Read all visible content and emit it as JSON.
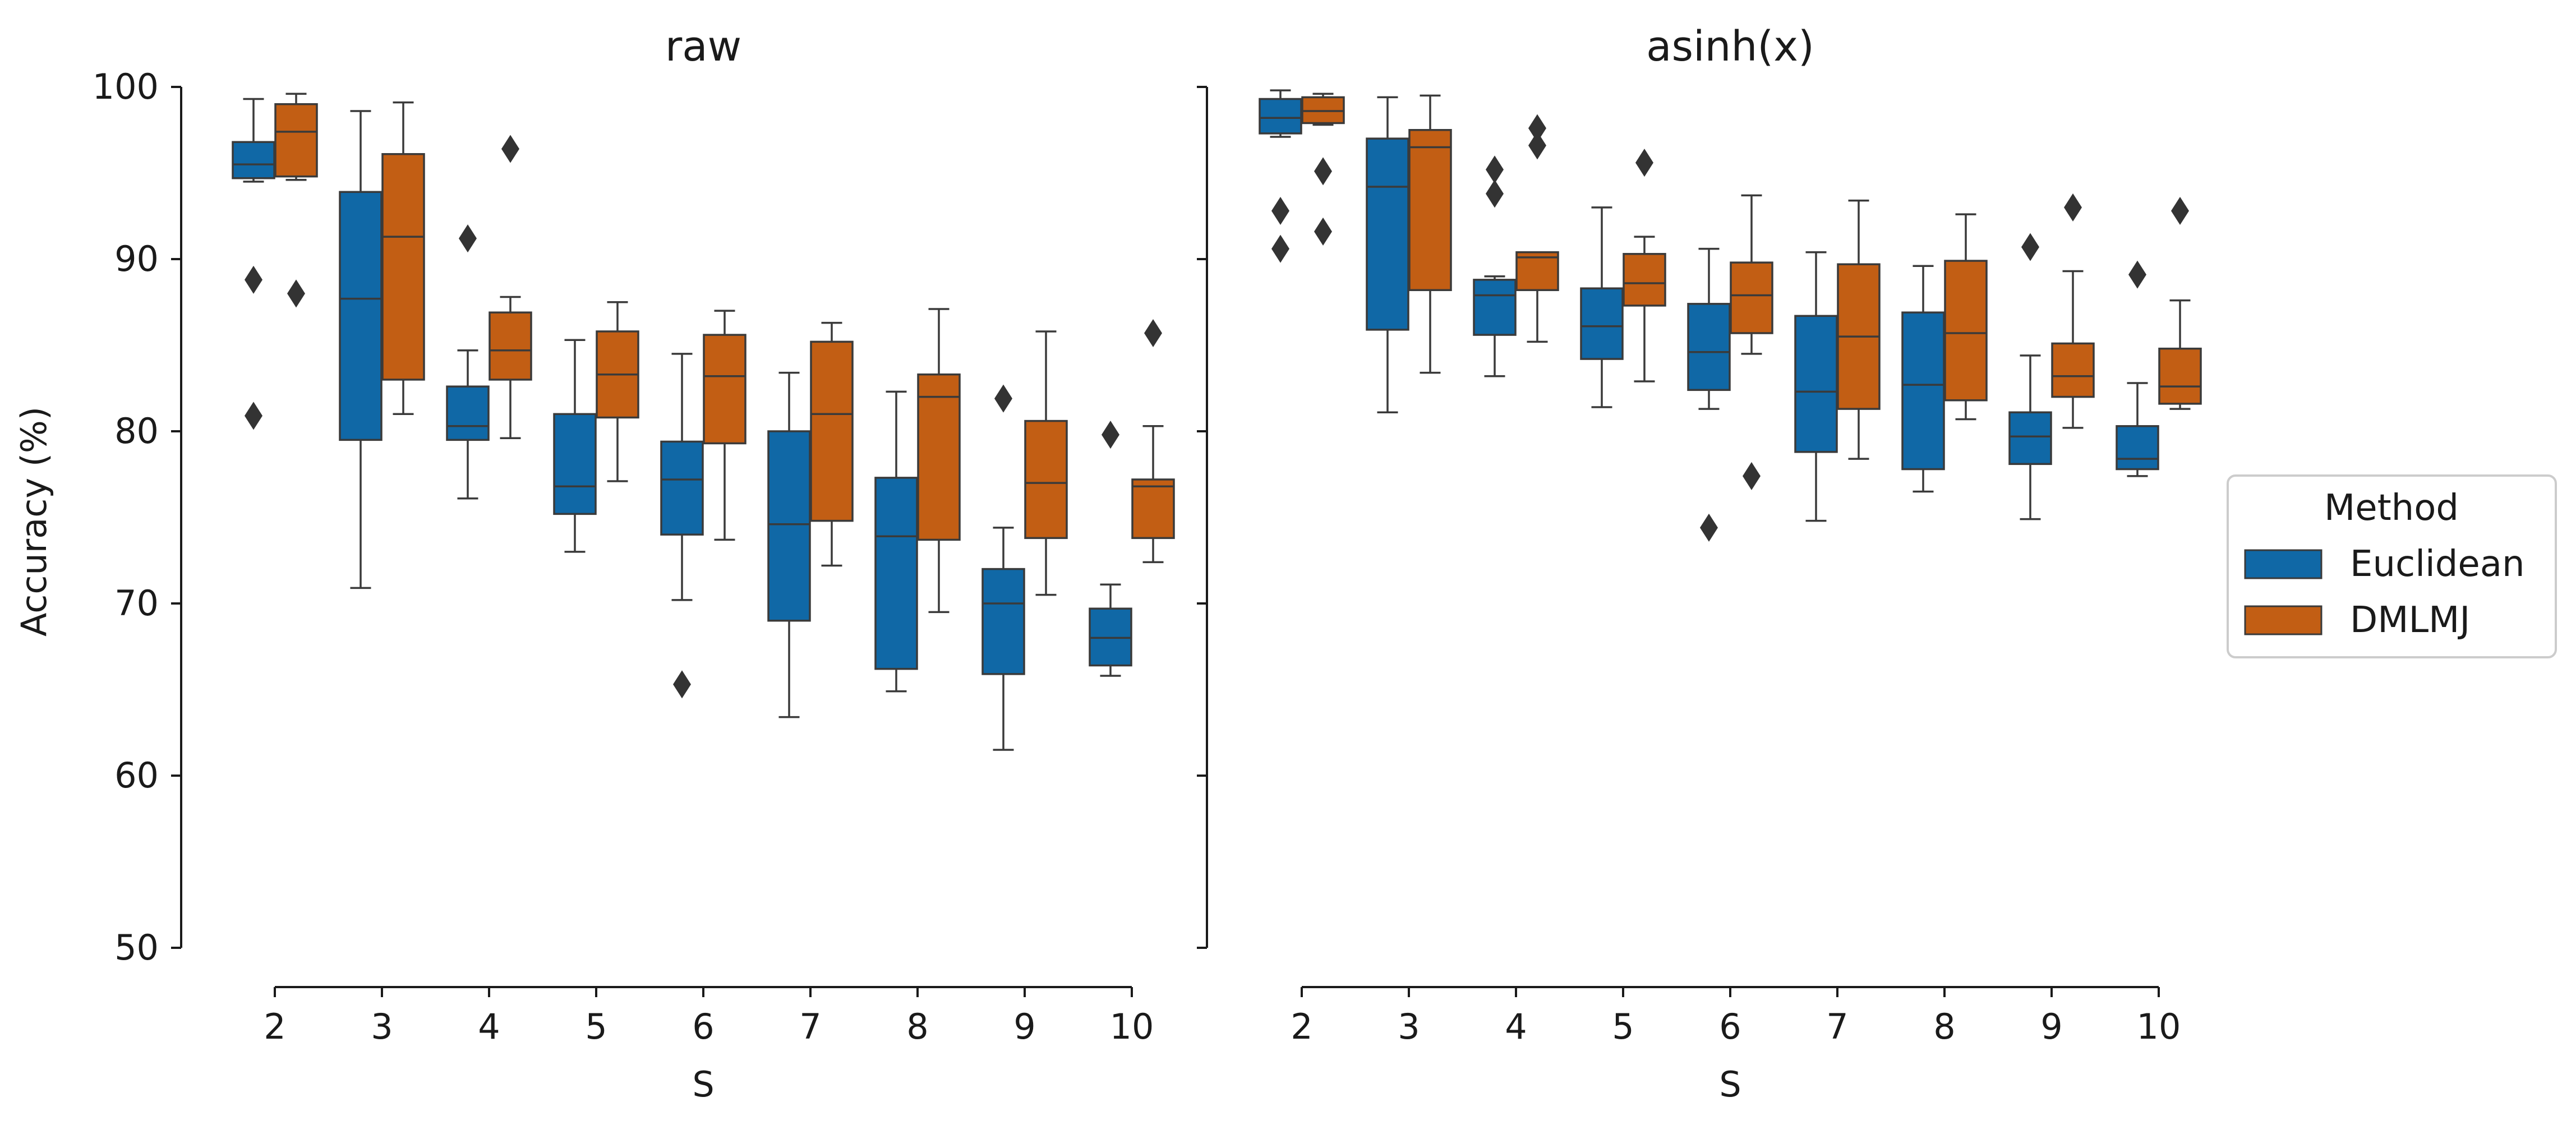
{
  "chart_data": {
    "type": "box",
    "ylabel": "Accuracy (%)",
    "ylim": [
      50,
      100
    ],
    "yticks": [
      50,
      60,
      70,
      80,
      90,
      100
    ],
    "legend": {
      "title": "Method",
      "placement": "right",
      "entries": [
        {
          "name": "Euclidean",
          "color": "#1068a6"
        },
        {
          "name": "DMLMJ",
          "color": "#c25e14"
        }
      ]
    },
    "panels": [
      {
        "title": "raw",
        "xlabel": "S",
        "categories": [
          "2",
          "3",
          "4",
          "5",
          "6",
          "7",
          "8",
          "9",
          "10"
        ],
        "series": [
          {
            "name": "Euclidean",
            "boxes": [
              {
                "whislo": 94.5,
                "q1": 94.7,
                "med": 95.5,
                "q3": 96.8,
                "whishi": 99.3,
                "fliers": [
                  88.8,
                  80.9
                ]
              },
              {
                "whislo": 70.9,
                "q1": 79.5,
                "med": 87.7,
                "q3": 93.9,
                "whishi": 98.6,
                "fliers": []
              },
              {
                "whislo": 76.1,
                "q1": 79.5,
                "med": 80.3,
                "q3": 82.6,
                "whishi": 84.7,
                "fliers": [
                  91.2
                ]
              },
              {
                "whislo": 73.0,
                "q1": 75.2,
                "med": 76.8,
                "q3": 81.0,
                "whishi": 85.3,
                "fliers": []
              },
              {
                "whislo": 70.2,
                "q1": 74.0,
                "med": 77.2,
                "q3": 79.4,
                "whishi": 84.5,
                "fliers": [
                  65.3
                ]
              },
              {
                "whislo": 63.4,
                "q1": 69.0,
                "med": 74.6,
                "q3": 80.0,
                "whishi": 83.4,
                "fliers": []
              },
              {
                "whislo": 64.9,
                "q1": 66.2,
                "med": 73.9,
                "q3": 77.3,
                "whishi": 82.3,
                "fliers": []
              },
              {
                "whislo": 61.5,
                "q1": 65.9,
                "med": 70.0,
                "q3": 72.0,
                "whishi": 74.4,
                "fliers": [
                  81.9
                ]
              },
              {
                "whislo": 65.8,
                "q1": 66.4,
                "med": 68.0,
                "q3": 69.7,
                "whishi": 71.1,
                "fliers": [
                  79.8
                ]
              }
            ]
          },
          {
            "name": "DMLMJ",
            "boxes": [
              {
                "whislo": 94.6,
                "q1": 94.8,
                "med": 97.4,
                "q3": 99.0,
                "whishi": 99.6,
                "fliers": [
                  88.0
                ]
              },
              {
                "whislo": 81.0,
                "q1": 83.0,
                "med": 91.3,
                "q3": 96.1,
                "whishi": 99.1,
                "fliers": []
              },
              {
                "whislo": 79.6,
                "q1": 83.0,
                "med": 84.7,
                "q3": 86.9,
                "whishi": 87.8,
                "fliers": [
                  96.4
                ]
              },
              {
                "whislo": 77.1,
                "q1": 80.8,
                "med": 83.3,
                "q3": 85.8,
                "whishi": 87.5,
                "fliers": []
              },
              {
                "whislo": 73.7,
                "q1": 79.3,
                "med": 83.2,
                "q3": 85.6,
                "whishi": 87.0,
                "fliers": []
              },
              {
                "whislo": 72.2,
                "q1": 74.8,
                "med": 81.0,
                "q3": 85.2,
                "whishi": 86.3,
                "fliers": []
              },
              {
                "whislo": 69.5,
                "q1": 73.7,
                "med": 82.0,
                "q3": 83.3,
                "whishi": 87.1,
                "fliers": []
              },
              {
                "whislo": 70.5,
                "q1": 73.8,
                "med": 77.0,
                "q3": 80.6,
                "whishi": 85.8,
                "fliers": []
              },
              {
                "whislo": 72.4,
                "q1": 73.8,
                "med": 76.8,
                "q3": 77.2,
                "whishi": 80.3,
                "fliers": [
                  85.7
                ]
              }
            ]
          }
        ]
      },
      {
        "title": "asinh(x)",
        "xlabel": "S",
        "categories": [
          "2",
          "3",
          "4",
          "5",
          "6",
          "7",
          "8",
          "9",
          "10"
        ],
        "series": [
          {
            "name": "Euclidean",
            "boxes": [
              {
                "whislo": 97.1,
                "q1": 97.3,
                "med": 98.2,
                "q3": 99.3,
                "whishi": 99.8,
                "fliers": [
                  92.8,
                  90.6
                ]
              },
              {
                "whislo": 81.1,
                "q1": 85.9,
                "med": 94.2,
                "q3": 97.0,
                "whishi": 99.4,
                "fliers": []
              },
              {
                "whislo": 83.2,
                "q1": 85.6,
                "med": 87.9,
                "q3": 88.8,
                "whishi": 89.0,
                "fliers": [
                  95.2,
                  93.8
                ]
              },
              {
                "whislo": 81.4,
                "q1": 84.2,
                "med": 86.1,
                "q3": 88.3,
                "whishi": 93.0,
                "fliers": []
              },
              {
                "whislo": 81.3,
                "q1": 82.4,
                "med": 84.6,
                "q3": 87.4,
                "whishi": 90.6,
                "fliers": [
                  74.4
                ]
              },
              {
                "whislo": 74.8,
                "q1": 78.8,
                "med": 82.3,
                "q3": 86.7,
                "whishi": 90.4,
                "fliers": []
              },
              {
                "whislo": 76.5,
                "q1": 77.8,
                "med": 82.7,
                "q3": 86.9,
                "whishi": 89.6,
                "fliers": []
              },
              {
                "whislo": 74.9,
                "q1": 78.1,
                "med": 79.7,
                "q3": 81.1,
                "whishi": 84.4,
                "fliers": [
                  90.7
                ]
              },
              {
                "whislo": 77.4,
                "q1": 77.8,
                "med": 78.4,
                "q3": 80.3,
                "whishi": 82.8,
                "fliers": [
                  89.1
                ]
              }
            ]
          },
          {
            "name": "DMLMJ",
            "boxes": [
              {
                "whislo": 97.8,
                "q1": 97.9,
                "med": 98.6,
                "q3": 99.4,
                "whishi": 99.6,
                "fliers": [
                  95.1,
                  91.6
                ]
              },
              {
                "whislo": 83.4,
                "q1": 88.2,
                "med": 96.5,
                "q3": 97.5,
                "whishi": 99.5,
                "fliers": []
              },
              {
                "whislo": 85.2,
                "q1": 88.2,
                "med": 90.1,
                "q3": 90.4,
                "whishi": 90.4,
                "fliers": [
                  97.6,
                  96.6
                ]
              },
              {
                "whislo": 82.9,
                "q1": 87.3,
                "med": 88.6,
                "q3": 90.3,
                "whishi": 91.3,
                "fliers": [
                  95.6
                ]
              },
              {
                "whislo": 84.5,
                "q1": 85.7,
                "med": 87.9,
                "q3": 89.8,
                "whishi": 93.7,
                "fliers": [
                  77.4
                ]
              },
              {
                "whislo": 78.4,
                "q1": 81.3,
                "med": 85.5,
                "q3": 89.7,
                "whishi": 93.4,
                "fliers": []
              },
              {
                "whislo": 80.7,
                "q1": 81.8,
                "med": 85.7,
                "q3": 89.9,
                "whishi": 92.6,
                "fliers": []
              },
              {
                "whislo": 80.2,
                "q1": 82.0,
                "med": 83.2,
                "q3": 85.1,
                "whishi": 89.3,
                "fliers": [
                  93.0
                ]
              },
              {
                "whislo": 81.3,
                "q1": 81.6,
                "med": 82.6,
                "q3": 84.8,
                "whishi": 87.6,
                "fliers": [
                  92.8
                ]
              }
            ]
          }
        ]
      }
    ]
  }
}
